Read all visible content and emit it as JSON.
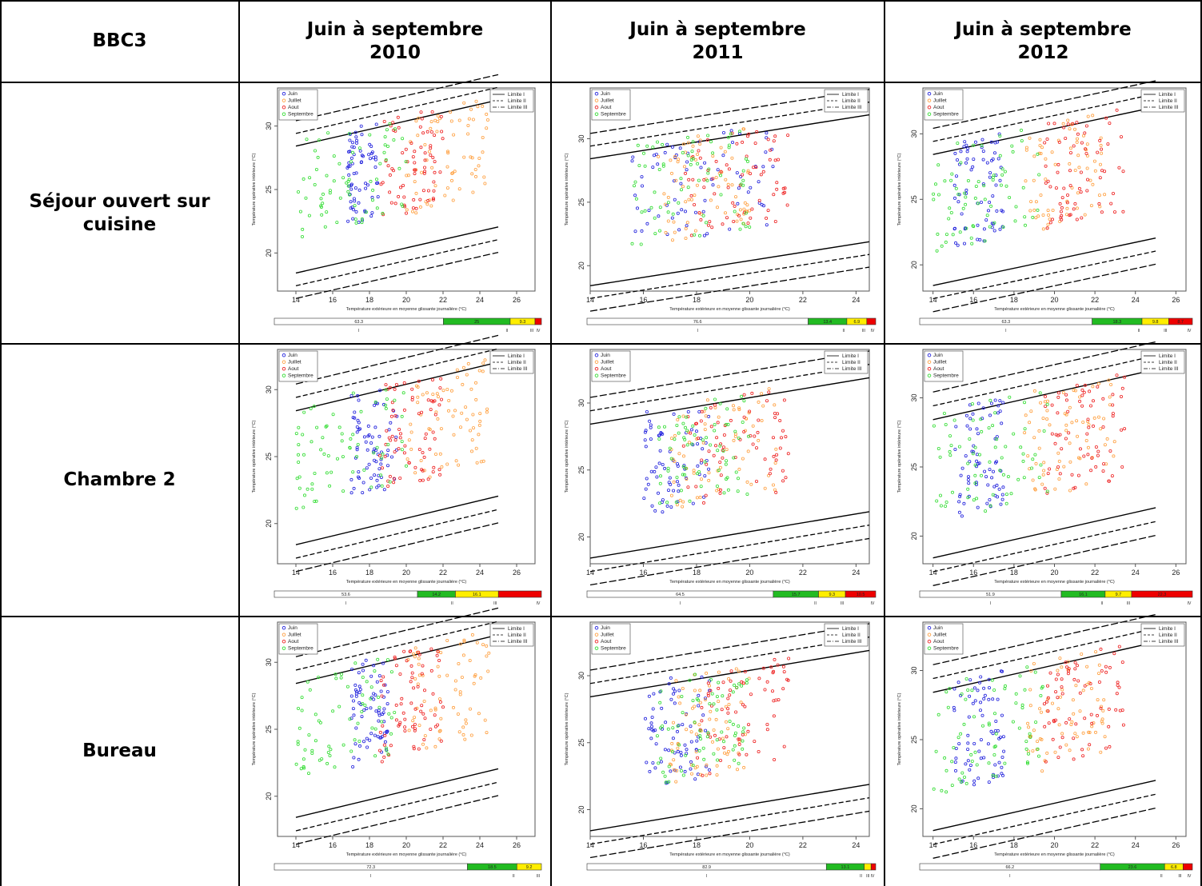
{
  "table": {
    "corner": "BBC3",
    "columns": [
      "Juin à septembre\n2010",
      "Juin à septembre\n2011",
      "Juin à septembre\n2012"
    ],
    "rows": [
      "Séjour ouvert sur\ncuisine",
      "Chambre 2",
      "Bureau"
    ]
  },
  "colors": {
    "Juin": "#2222dd",
    "Juillet": "#ffa040",
    "Aout": "#ee2222",
    "Septembre": "#33dd33",
    "bar_I": "#ffffff",
    "bar_II": "#22bb22",
    "bar_III": "#ffee00",
    "bar_IV": "#ee0000"
  },
  "chart_data": [
    {
      "type": "scatter",
      "room": "Séjour ouvert sur cuisine",
      "year": "2010",
      "title": "",
      "xlabel": "Température extérieure en moyenne glissante journalière (°C)",
      "ylabel": "Température opérative intérieure (°C)",
      "xlim": [
        13,
        27
      ],
      "ylim": [
        17,
        33
      ],
      "xticks": [
        "14",
        "16",
        "18",
        "20",
        "22",
        "24",
        "26"
      ],
      "yticks": [
        "20",
        "25",
        "30"
      ],
      "legend": [
        "Juin",
        "Juillet",
        "Aout",
        "Septembre"
      ],
      "limits_legend": [
        "Limite I",
        "Limite II",
        "Limite III"
      ],
      "months": {
        "Juin": [
          16.8,
          18.5
        ],
        "Juillet": [
          20,
          24.5
        ],
        "Aout": [
          18.5,
          22
        ],
        "Septembre": [
          14,
          20
        ]
      },
      "comfort_bar": {
        "values": [
          63.3,
          25,
          9.3,
          2.4
        ],
        "labels": [
          "63.3",
          "25",
          "9.3",
          ""
        ],
        "categories": [
          "I",
          "II",
          "III",
          "IV"
        ]
      }
    },
    {
      "type": "scatter",
      "room": "Séjour ouvert sur cuisine",
      "year": "2011",
      "title": "",
      "xlabel": "Température extérieure en moyenne glissante journalière (°C)",
      "ylabel": "Température opérative intérieure (°C)",
      "xlim": [
        14,
        24.5
      ],
      "ylim": [
        18,
        34
      ],
      "xticks": [
        "14",
        "16",
        "18",
        "20",
        "22",
        "24"
      ],
      "yticks": [
        "20",
        "25",
        "30"
      ],
      "legend": [
        "Juin",
        "Juillet",
        "Aout",
        "Septembre"
      ],
      "limits_legend": [
        "Limite I",
        "Limite II",
        "Limite III"
      ],
      "months": {
        "Juin": [
          15.5,
          21
        ],
        "Juillet": [
          16.5,
          20
        ],
        "Aout": [
          17.5,
          21.5
        ],
        "Septembre": [
          15.5,
          20
        ]
      },
      "comfort_bar": {
        "values": [
          76.6,
          13.4,
          6.9,
          3.1
        ],
        "labels": [
          "76.6",
          "13.4",
          "6.9",
          ""
        ],
        "categories": [
          "I",
          "II",
          "III",
          "IV"
        ]
      }
    },
    {
      "type": "scatter",
      "room": "Séjour ouvert sur cuisine",
      "year": "2012",
      "title": "",
      "xlabel": "Température extérieure en moyenne glissante journalière (°C)",
      "ylabel": "Température opérative intérieure (°C)",
      "xlim": [
        13.5,
        26.5
      ],
      "ylim": [
        18,
        33.5
      ],
      "xticks": [
        "14",
        "16",
        "18",
        "20",
        "22",
        "24",
        "26"
      ],
      "yticks": [
        "20",
        "25",
        "30"
      ],
      "legend": [
        "Juin",
        "Juillet",
        "Aout",
        "Septembre"
      ],
      "limits_legend": [
        "Limite I",
        "Limite II",
        "Limite III"
      ],
      "months": {
        "Juin": [
          15,
          17.5
        ],
        "Juillet": [
          18.5,
          22.5
        ],
        "Aout": [
          19.5,
          23.5
        ],
        "Septembre": [
          14,
          19.5
        ]
      },
      "comfort_bar": {
        "values": [
          63.3,
          18.3,
          9.8,
          8.7
        ],
        "labels": [
          "63.3",
          "18.3",
          "9.8",
          "8.7"
        ],
        "categories": [
          "I",
          "II",
          "III",
          "IV"
        ]
      }
    },
    {
      "type": "scatter",
      "room": "Chambre 2",
      "year": "2010",
      "title": "",
      "xlabel": "Température extérieure en moyenne glissante journalière (°C)",
      "ylabel": "Température opérative intérieure (°C)",
      "xlim": [
        13,
        27
      ],
      "ylim": [
        17,
        33
      ],
      "xticks": [
        "14",
        "16",
        "18",
        "20",
        "22",
        "24",
        "26"
      ],
      "yticks": [
        "20",
        "25",
        "30"
      ],
      "legend": [
        "Juin",
        "Juillet",
        "Aout",
        "Septembre"
      ],
      "limits_legend": [
        "Limite I",
        "Limite II",
        "Limite III"
      ],
      "months": {
        "Juin": [
          17,
          19.5
        ],
        "Juillet": [
          20,
          24.5
        ],
        "Aout": [
          18.5,
          22
        ],
        "Septembre": [
          14,
          20
        ]
      },
      "comfort_bar": {
        "values": [
          53.6,
          14.2,
          16.1,
          16.1
        ],
        "labels": [
          "53.6",
          "14.2",
          "16.1",
          ""
        ],
        "categories": [
          "I",
          "II",
          "III",
          "IV"
        ]
      }
    },
    {
      "type": "scatter",
      "room": "Chambre 2",
      "year": "2011",
      "title": "",
      "xlabel": "Température extérieure en moyenne glissante journalière (°C)",
      "ylabel": "Température opérative intérieure (°C)",
      "xlim": [
        14,
        24.5
      ],
      "ylim": [
        18,
        34
      ],
      "xticks": [
        "14",
        "16",
        "18",
        "20",
        "22",
        "24"
      ],
      "yticks": [
        "20",
        "25",
        "30"
      ],
      "legend": [
        "Juin",
        "Juillet",
        "Aout",
        "Septembre"
      ],
      "limits_legend": [
        "Limite I",
        "Limite II",
        "Limite III"
      ],
      "months": {
        "Juin": [
          16,
          18.5
        ],
        "Juillet": [
          17,
          21
        ],
        "Aout": [
          17.5,
          21.5
        ],
        "Septembre": [
          16.5,
          20
        ]
      },
      "comfort_bar": {
        "values": [
          64.5,
          15.7,
          9.3,
          10.5
        ],
        "labels": [
          "64.5",
          "15.7",
          "9.3",
          "10.5"
        ],
        "categories": [
          "I",
          "II",
          "III",
          "IV"
        ]
      }
    },
    {
      "type": "scatter",
      "room": "Chambre 2",
      "year": "2012",
      "title": "",
      "xlabel": "Température extérieure en moyenne glissante journalière (°C)",
      "ylabel": "Température opérative intérieure (°C)",
      "xlim": [
        13.5,
        26.5
      ],
      "ylim": [
        18,
        33.5
      ],
      "xticks": [
        "14",
        "16",
        "18",
        "20",
        "22",
        "24",
        "26"
      ],
      "yticks": [
        "20",
        "25",
        "30"
      ],
      "legend": [
        "Juin",
        "Juillet",
        "Aout",
        "Septembre"
      ],
      "limits_legend": [
        "Limite I",
        "Limite II",
        "Limite III"
      ],
      "months": {
        "Juin": [
          15,
          17.5
        ],
        "Juillet": [
          18.5,
          23
        ],
        "Aout": [
          19.5,
          23.5
        ],
        "Septembre": [
          14,
          20
        ]
      },
      "comfort_bar": {
        "values": [
          51.9,
          16.1,
          9.7,
          22.3
        ],
        "labels": [
          "51.9",
          "16.1",
          "9.7",
          "22.3"
        ],
        "categories": [
          "I",
          "II",
          "III",
          "IV"
        ]
      }
    },
    {
      "type": "scatter",
      "room": "Bureau",
      "year": "2010",
      "title": "",
      "xlabel": "Température extérieure en moyenne glissante journalière (°C)",
      "ylabel": "Température opérative intérieure (°C)",
      "xlim": [
        13,
        27
      ],
      "ylim": [
        17,
        33
      ],
      "xticks": [
        "14",
        "16",
        "18",
        "20",
        "22",
        "24",
        "26"
      ],
      "yticks": [
        "20",
        "25",
        "30"
      ],
      "legend": [
        "Juin",
        "Juillet",
        "Aout",
        "Septembre"
      ],
      "limits_legend": [
        "Limite I",
        "Limite II",
        "Limite III"
      ],
      "months": {
        "Juin": [
          17,
          19
        ],
        "Juillet": [
          20,
          24.5
        ],
        "Aout": [
          18.5,
          22
        ],
        "Septembre": [
          14,
          19.5
        ]
      },
      "comfort_bar": {
        "values": [
          72.3,
          18.5,
          9.2,
          0
        ],
        "labels": [
          "72.3",
          "18.5",
          "9.2",
          ""
        ],
        "categories": [
          "I",
          "II",
          "III",
          "IV"
        ]
      }
    },
    {
      "type": "scatter",
      "room": "Bureau",
      "year": "2011",
      "title": "",
      "xlabel": "Température extérieure en moyenne glissante journalière (°C)",
      "ylabel": "Température opérative intérieure (°C)",
      "xlim": [
        14,
        24.5
      ],
      "ylim": [
        18,
        34
      ],
      "xticks": [
        "14",
        "16",
        "18",
        "20",
        "22",
        "24"
      ],
      "yticks": [
        "20",
        "25",
        "30"
      ],
      "legend": [
        "Juin",
        "Juillet",
        "Aout",
        "Septembre"
      ],
      "limits_legend": [
        "Limite I",
        "Limite II",
        "Limite III"
      ],
      "months": {
        "Juin": [
          16,
          18.5
        ],
        "Juillet": [
          17,
          20
        ],
        "Aout": [
          18,
          21.5
        ],
        "Septembre": [
          16.5,
          20
        ]
      },
      "comfort_bar": {
        "values": [
          82.9,
          13.1,
          2.4,
          1.6
        ],
        "labels": [
          "82.9",
          "13.1",
          "",
          ""
        ],
        "categories": [
          "I",
          "II",
          "III",
          "IV"
        ]
      }
    },
    {
      "type": "scatter",
      "room": "Bureau",
      "year": "2012",
      "title": "",
      "xlabel": "Température extérieure en moyenne glissante journalière (°C)",
      "ylabel": "Température opérative intérieure (°C)",
      "xlim": [
        13.5,
        26.5
      ],
      "ylim": [
        18,
        33.5
      ],
      "xticks": [
        "14",
        "16",
        "18",
        "20",
        "22",
        "24",
        "26"
      ],
      "yticks": [
        "20",
        "25",
        "30"
      ],
      "legend": [
        "Juin",
        "Juillet",
        "Aout",
        "Septembre"
      ],
      "limits_legend": [
        "Limite I",
        "Limite II",
        "Limite III"
      ],
      "months": {
        "Juin": [
          15,
          17.5
        ],
        "Juillet": [
          18.5,
          22.5
        ],
        "Aout": [
          19.5,
          23.5
        ],
        "Septembre": [
          14,
          19.5
        ]
      },
      "comfort_bar": {
        "values": [
          66.2,
          23.6,
          6.8,
          3.4
        ],
        "labels": [
          "66.2",
          "23.6",
          "6.8",
          ""
        ],
        "categories": [
          "I",
          "II",
          "III",
          "IV"
        ]
      }
    }
  ]
}
